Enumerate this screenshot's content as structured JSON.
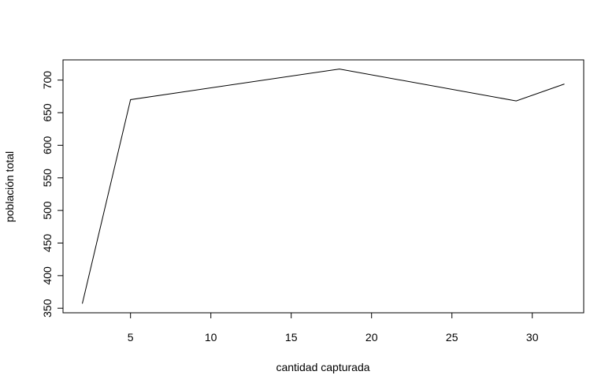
{
  "chart_data": {
    "type": "line",
    "title": "",
    "xlabel": "cantidad capturada",
    "ylabel": "población total",
    "x": [
      2,
      5,
      18,
      29,
      32
    ],
    "y": [
      357,
      670,
      717,
      668,
      694
    ],
    "xlim": [
      0.8,
      33.2
    ],
    "ylim": [
      343,
      731
    ],
    "xticks": [
      5,
      10,
      15,
      20,
      25,
      30
    ],
    "yticks": [
      350,
      400,
      450,
      500,
      550,
      600,
      650,
      700
    ],
    "grid": false,
    "legend": "none",
    "line_color": "#000000"
  }
}
